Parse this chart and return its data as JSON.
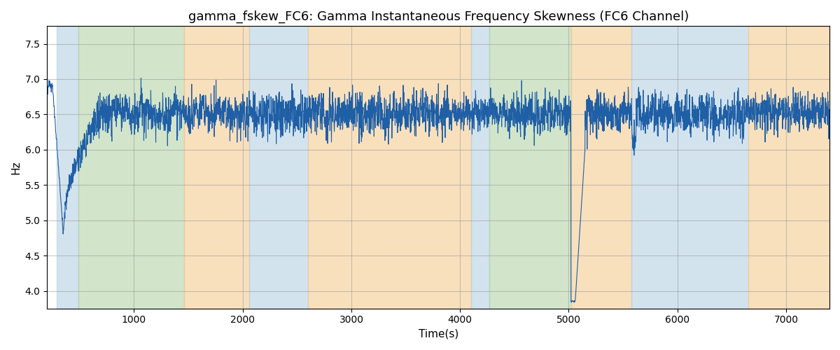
{
  "title": "gamma_fskew_FC6: Gamma Instantaneous Frequency Skewness (FC6 Channel)",
  "xlabel": "Time(s)",
  "ylabel": "Hz",
  "line_color": "#1f5fa6",
  "line_width": 0.8,
  "bg_regions": [
    {
      "xmin": 290,
      "xmax": 490,
      "color": "#b0cce0",
      "alpha": 0.55
    },
    {
      "xmin": 490,
      "xmax": 1460,
      "color": "#aed0a0",
      "alpha": 0.55
    },
    {
      "xmin": 1460,
      "xmax": 2060,
      "color": "#f5c888",
      "alpha": 0.55
    },
    {
      "xmin": 2060,
      "xmax": 2600,
      "color": "#b0cce0",
      "alpha": 0.55
    },
    {
      "xmin": 2600,
      "xmax": 4100,
      "color": "#f5c888",
      "alpha": 0.55
    },
    {
      "xmin": 4100,
      "xmax": 4270,
      "color": "#b0cce0",
      "alpha": 0.55
    },
    {
      "xmin": 4270,
      "xmax": 5020,
      "color": "#aed0a0",
      "alpha": 0.55
    },
    {
      "xmin": 5020,
      "xmax": 5020,
      "color": "#b0cce0",
      "alpha": 0.55
    },
    {
      "xmin": 5020,
      "xmax": 5580,
      "color": "#f5c888",
      "alpha": 0.55
    },
    {
      "xmin": 5580,
      "xmax": 6650,
      "color": "#b0cce0",
      "alpha": 0.55
    },
    {
      "xmin": 6650,
      "xmax": 7400,
      "color": "#f5c888",
      "alpha": 0.55
    }
  ],
  "xlim": [
    200,
    7400
  ],
  "ylim": [
    3.75,
    7.75
  ],
  "yticks": [
    4.0,
    4.5,
    5.0,
    5.5,
    6.0,
    6.5,
    7.0,
    7.5
  ],
  "xticks": [
    1000,
    2000,
    3000,
    4000,
    5000,
    6000,
    7000
  ],
  "grid_color": "#a0a0a0",
  "grid_alpha": 0.6,
  "seed": 12345,
  "n_points": 3600,
  "mean_value": 6.52,
  "std_value": 0.18,
  "title_fontsize": 13,
  "label_fontsize": 11
}
